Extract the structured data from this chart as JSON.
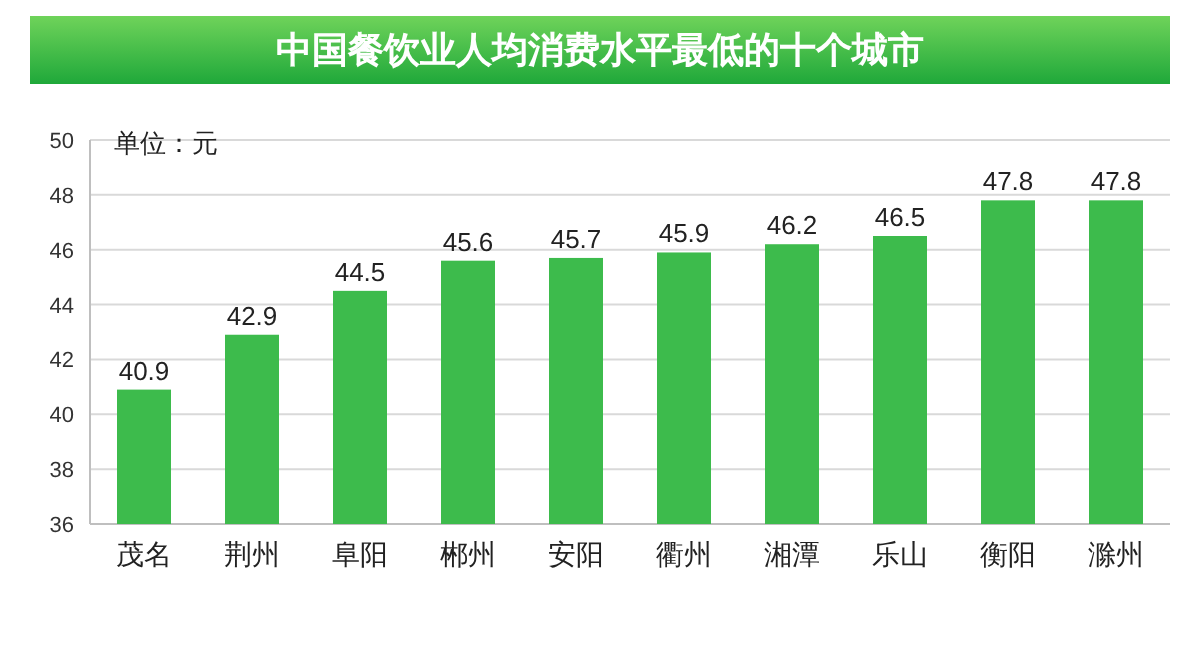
{
  "chart_data": {
    "type": "bar",
    "title": "中国餐饮业人均消费水平最低的十个城市",
    "annotations": [
      "单位：元"
    ],
    "categories": [
      "茂名",
      "荆州",
      "阜阳",
      "郴州",
      "安阳",
      "衢州",
      "湘潭",
      "乐山",
      "衡阳",
      "滁州"
    ],
    "values": [
      40.9,
      42.9,
      44.5,
      45.6,
      45.7,
      45.9,
      46.2,
      46.5,
      47.8,
      47.8
    ],
    "color": "#3dbb4c",
    "ylim": [
      36,
      50
    ],
    "yticks": [
      36,
      38,
      40,
      42,
      44,
      46,
      48,
      50
    ],
    "grid": "y",
    "data_labels": true
  }
}
